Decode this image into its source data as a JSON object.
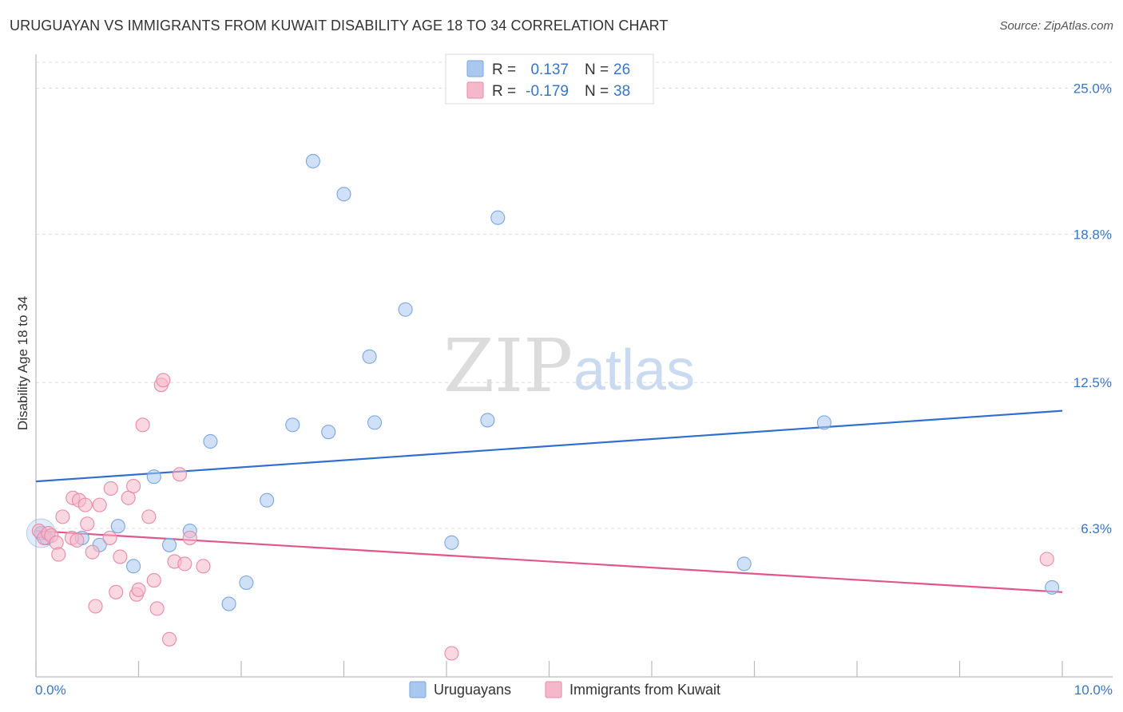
{
  "title": "URUGUAYAN VS IMMIGRANTS FROM KUWAIT DISABILITY AGE 18 TO 34 CORRELATION CHART",
  "source": "Source: ZipAtlas.com",
  "watermark": {
    "zip": "ZIP",
    "atlas": "atlas"
  },
  "legend": {
    "rows": [
      {
        "r_label": "R =",
        "r_value": "0.137",
        "n_label": "N =",
        "n_value": "26",
        "color": "#a9c8f0"
      },
      {
        "r_label": "R =",
        "r_value": "-0.179",
        "n_label": "N =",
        "n_value": "38",
        "color": "#f5b8cb"
      }
    ]
  },
  "bottom_legend": [
    "Uruguayans",
    "Immigrants from Kuwait"
  ],
  "chart_data": {
    "type": "scatter",
    "ylabel": "Disability Age 18 to 34",
    "xlim": [
      0,
      10
    ],
    "ylim": [
      0,
      25
    ],
    "x_tick_labels": [
      "0.0%",
      "10.0%"
    ],
    "y_tick_labels": [
      "25.0%",
      "18.8%",
      "12.5%",
      "6.3%"
    ],
    "y_ticks": [
      25.0,
      18.8,
      12.5,
      6.3
    ],
    "grid": true,
    "series": [
      {
        "name": "Uruguayans",
        "color": "#a9c8f0",
        "stroke": "#7aa6de",
        "trend_color": "#2f6fcf",
        "trend": [
          [
            0,
            8.3
          ],
          [
            10,
            11.3
          ]
        ],
        "points": [
          [
            0.05,
            6.1
          ],
          [
            0.1,
            5.9
          ],
          [
            0.45,
            5.9
          ],
          [
            0.62,
            5.6
          ],
          [
            0.8,
            6.4
          ],
          [
            0.95,
            4.7
          ],
          [
            1.15,
            8.5
          ],
          [
            1.3,
            5.6
          ],
          [
            1.5,
            6.2
          ],
          [
            1.7,
            10.0
          ],
          [
            1.88,
            3.1
          ],
          [
            2.05,
            4.0
          ],
          [
            2.25,
            7.5
          ],
          [
            2.5,
            10.7
          ],
          [
            2.7,
            21.9
          ],
          [
            2.85,
            10.4
          ],
          [
            3.0,
            20.5
          ],
          [
            3.25,
            13.6
          ],
          [
            3.3,
            10.8
          ],
          [
            3.6,
            15.6
          ],
          [
            4.05,
            5.7
          ],
          [
            4.4,
            10.9
          ],
          [
            4.5,
            19.5
          ],
          [
            6.9,
            4.8
          ],
          [
            7.68,
            10.8
          ],
          [
            9.9,
            3.8
          ]
        ]
      },
      {
        "name": "Immigrants from Kuwait",
        "color": "#f5b8cb",
        "stroke": "#e88aa8",
        "trend_color": "#e0578b",
        "trend": [
          [
            0,
            6.2
          ],
          [
            10,
            3.6
          ]
        ],
        "points": [
          [
            0.03,
            6.2
          ],
          [
            0.08,
            5.9
          ],
          [
            0.12,
            6.1
          ],
          [
            0.15,
            6.0
          ],
          [
            0.2,
            5.7
          ],
          [
            0.22,
            5.2
          ],
          [
            0.26,
            6.8
          ],
          [
            0.35,
            5.9
          ],
          [
            0.36,
            7.6
          ],
          [
            0.4,
            5.8
          ],
          [
            0.42,
            7.5
          ],
          [
            0.48,
            7.3
          ],
          [
            0.5,
            6.5
          ],
          [
            0.55,
            5.3
          ],
          [
            0.58,
            3.0
          ],
          [
            0.62,
            7.3
          ],
          [
            0.72,
            5.9
          ],
          [
            0.73,
            8.0
          ],
          [
            0.78,
            3.6
          ],
          [
            0.82,
            5.1
          ],
          [
            0.9,
            7.6
          ],
          [
            0.95,
            8.1
          ],
          [
            0.98,
            3.5
          ],
          [
            1.0,
            3.7
          ],
          [
            1.04,
            10.7
          ],
          [
            1.1,
            6.8
          ],
          [
            1.15,
            4.1
          ],
          [
            1.18,
            2.9
          ],
          [
            1.22,
            12.4
          ],
          [
            1.24,
            12.6
          ],
          [
            1.3,
            1.6
          ],
          [
            1.35,
            4.9
          ],
          [
            1.4,
            8.6
          ],
          [
            1.45,
            4.8
          ],
          [
            1.5,
            5.9
          ],
          [
            1.63,
            4.7
          ],
          [
            4.05,
            1.0
          ],
          [
            9.85,
            5.0
          ]
        ]
      }
    ]
  }
}
